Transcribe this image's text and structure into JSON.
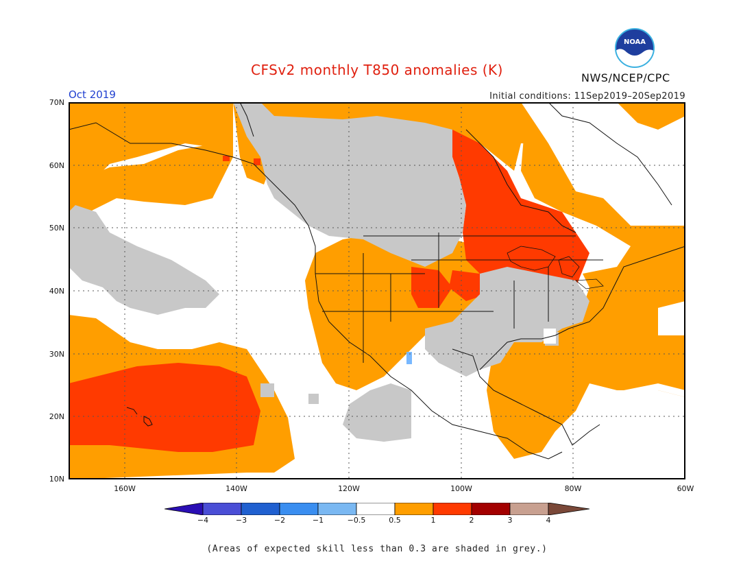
{
  "title": "CFSv2 monthly T850 anomalies (K)",
  "agency": "NWS/NCEP/CPC",
  "logo": {
    "text": "NOAA",
    "icon": "noaa-logo-icon"
  },
  "month_label": "Oct 2019",
  "initial_conditions": "Initial conditions: 11Sep2019–20Sep2019",
  "footnote": "(Areas of expected skill less than 0.3 are shaded in grey.)",
  "map": {
    "lat_ticks": [
      "70N",
      "60N",
      "50N",
      "40N",
      "30N",
      "20N",
      "10N"
    ],
    "lon_ticks": [
      "160W",
      "140W",
      "120W",
      "100W",
      "80W",
      "60W"
    ],
    "extent": {
      "lon": [
        -170,
        -60
      ],
      "lat": [
        10,
        70
      ]
    },
    "colors": {
      "warm_1": "#ff9e00",
      "warm_2": "#ff3a00",
      "grey": "#c8c8c8",
      "cool_1": "#78b8ff"
    }
  },
  "colorbar": {
    "ticks": [
      "−4",
      "−3",
      "−2",
      "−1",
      "−0.5",
      "0.5",
      "1",
      "2",
      "3",
      "4"
    ],
    "colors": [
      "#2a0eb4",
      "#4a4ed6",
      "#2060d0",
      "#3a8ef0",
      "#7ab8f2",
      "#ffffff",
      "#ff9e00",
      "#ff3a00",
      "#a30000",
      "#c8a090",
      "#7a4838"
    ]
  }
}
